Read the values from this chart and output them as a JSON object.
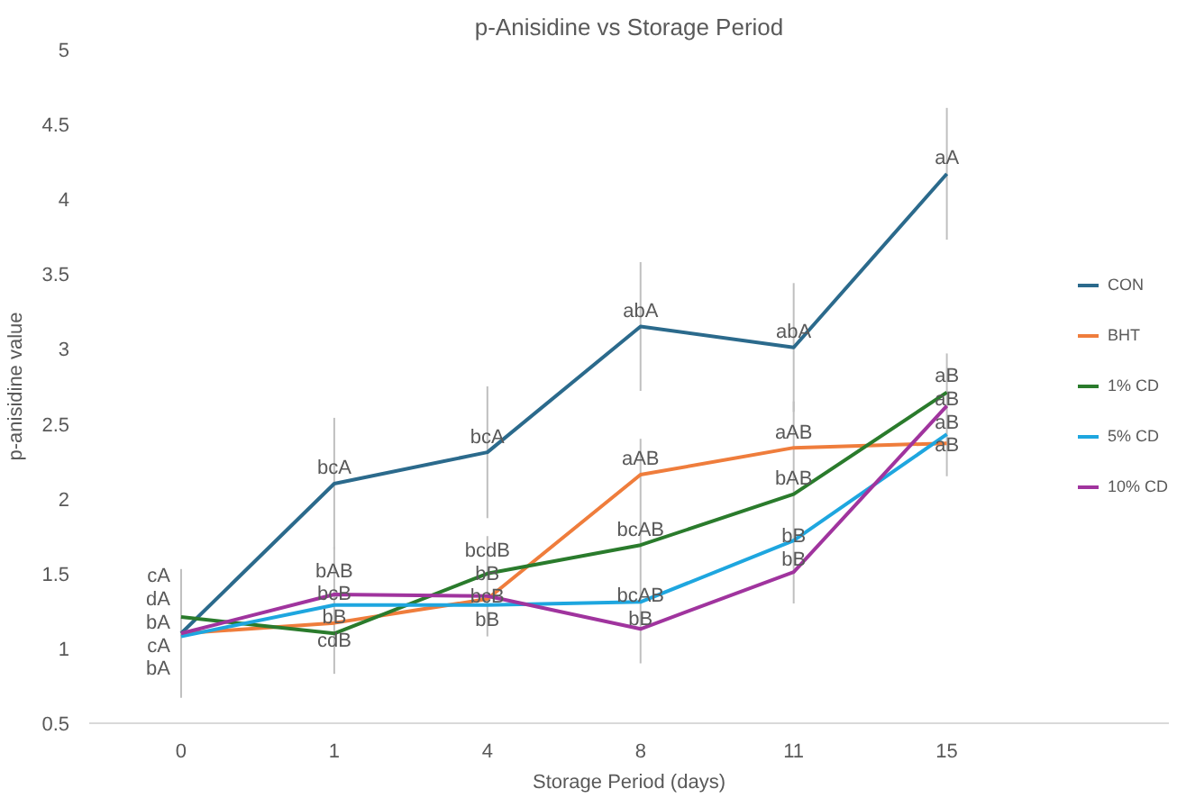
{
  "chart_data": {
    "type": "line",
    "title": "p-Anisidine vs Storage Period",
    "xlabel": "Storage Period (days)",
    "ylabel": "p-anisidine value",
    "categories": [
      "0",
      "1",
      "4",
      "8",
      "11",
      "15"
    ],
    "ylim": [
      0.5,
      5
    ],
    "yticks": [
      0.5,
      1,
      1.5,
      2,
      2.5,
      3,
      3.5,
      4,
      4.5,
      5
    ],
    "grid": false,
    "legend": "right",
    "marker": "none",
    "line_style": "solid",
    "series": [
      {
        "name": "CON",
        "color": "#2b6a8c",
        "values": [
          1.1,
          2.1,
          2.31,
          3.15,
          3.01,
          4.17
        ],
        "errors": [
          0.43,
          0.44,
          0.44,
          0.43,
          0.43,
          0.44
        ],
        "value_labels": [
          "cA",
          "bcA",
          "bcA",
          "abA",
          "abA",
          "aA"
        ]
      },
      {
        "name": "BHT",
        "color": "#ef7d3c",
        "values": [
          1.1,
          1.17,
          1.33,
          2.16,
          2.34,
          2.37
        ],
        "errors": [
          null,
          [
            0.83,
            1.68
          ],
          [
            1.08,
            1.75
          ],
          [
            0.9,
            2.4
          ],
          [
            1.3,
            2.65
          ],
          [
            2.15,
            2.97
          ]
        ],
        "value_labels": [
          "bA",
          "bB",
          "bcB",
          "aAB",
          "aAB",
          "aB"
        ]
      },
      {
        "name": "1% CD",
        "color": "#2a7b2c",
        "values": [
          1.21,
          1.1,
          1.5,
          1.69,
          2.03,
          2.71
        ],
        "value_labels": [
          "cA",
          "cdB",
          "bcdB",
          "bcAB",
          "bAB",
          "aB"
        ]
      },
      {
        "name": "5% CD",
        "color": "#1ea6df",
        "values": [
          1.08,
          1.29,
          1.29,
          1.31,
          1.72,
          2.43
        ],
        "value_labels": [
          "bA",
          "bcB",
          "bB",
          "bcAB",
          "bB",
          "aB"
        ]
      },
      {
        "name": "10% CD",
        "color": "#a0349e",
        "values": [
          1.1,
          1.36,
          1.35,
          1.13,
          1.51,
          2.62
        ],
        "value_labels": [
          "dA",
          "bAB",
          "bB",
          "bB",
          "bB",
          "aB"
        ]
      }
    ]
  }
}
